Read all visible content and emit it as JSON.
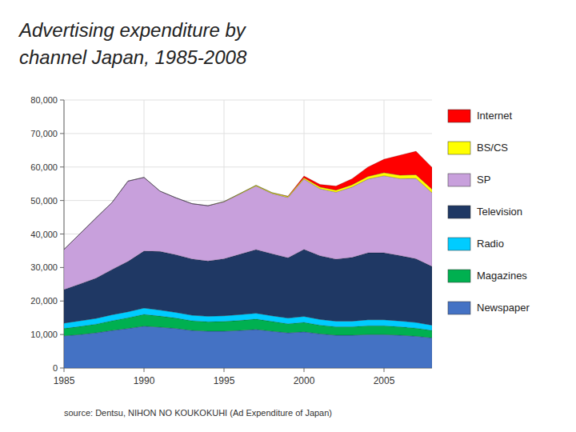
{
  "chart_data": {
    "type": "area",
    "stacked": true,
    "title": "Advertising expenditure by",
    "subtitle": "channel Japan, 1985-2008",
    "annotations": [
      "source: Dentsu, NIHON NO KOUKOKUHI (Ad Expenditure of Japan)"
    ],
    "x": [
      1985,
      1986,
      1987,
      1988,
      1989,
      1990,
      1991,
      1992,
      1993,
      1994,
      1995,
      1996,
      1997,
      1998,
      1999,
      2000,
      2001,
      2002,
      2003,
      2004,
      2005,
      2006,
      2007,
      2008
    ],
    "series": [
      {
        "name": "Newspaper",
        "color": "#4472C4",
        "values": [
          9600,
          10000,
          10500,
          11200,
          11800,
          12500,
          12200,
          11800,
          11200,
          11000,
          11000,
          11200,
          11500,
          11000,
          10500,
          10800,
          10200,
          9800,
          9800,
          10000,
          10000,
          9800,
          9500,
          9000
        ]
      },
      {
        "name": "Magazines",
        "color": "#00B050",
        "values": [
          2200,
          2400,
          2600,
          2900,
          3200,
          3500,
          3300,
          3100,
          2900,
          2800,
          2900,
          3000,
          3100,
          2900,
          2700,
          2800,
          2600,
          2500,
          2500,
          2600,
          2600,
          2500,
          2400,
          2200
        ]
      },
      {
        "name": "Radio",
        "color": "#00CCFF",
        "values": [
          1600,
          1700,
          1700,
          1800,
          1800,
          1900,
          1800,
          1700,
          1650,
          1650,
          1700,
          1750,
          1750,
          1700,
          1700,
          1800,
          1700,
          1700,
          1700,
          1800,
          1800,
          1750,
          1700,
          1600
        ]
      },
      {
        "name": "Television",
        "color": "#1F3864",
        "values": [
          10000,
          11000,
          12000,
          13500,
          15000,
          17000,
          17500,
          17200,
          16800,
          16500,
          17000,
          18000,
          19000,
          18500,
          18000,
          20000,
          19000,
          18500,
          19000,
          20000,
          20000,
          19500,
          19000,
          17500
        ]
      },
      {
        "name": "SP",
        "color": "#C8A0DC",
        "values": [
          12000,
          15000,
          18000,
          20000,
          24000,
          22000,
          18000,
          17000,
          16500,
          16500,
          17000,
          18000,
          19000,
          18000,
          18000,
          21000,
          20000,
          20000,
          21000,
          22000,
          23000,
          23000,
          24000,
          22000
        ]
      },
      {
        "name": "BS/CS",
        "color": "#FFFF00",
        "values": [
          0,
          0,
          0,
          0,
          0,
          0,
          0,
          0,
          0,
          0,
          100,
          150,
          200,
          250,
          300,
          400,
          500,
          600,
          700,
          800,
          900,
          1000,
          1100,
          1100
        ]
      },
      {
        "name": "Internet",
        "color": "#FF0000",
        "values": [
          0,
          0,
          0,
          0,
          0,
          0,
          0,
          0,
          0,
          0,
          0,
          0,
          0,
          0,
          100,
          500,
          800,
          1200,
          1800,
          2800,
          4000,
          6000,
          7000,
          6500
        ]
      }
    ],
    "xlim": [
      1985,
      2008
    ],
    "xticks": [
      1985,
      1990,
      1995,
      2000,
      2005
    ],
    "ylim": [
      0,
      80000
    ],
    "yticks": [
      0,
      {
        "value": 10000,
        "label": "10,000"
      },
      {
        "value": 20000,
        "label": "20,000"
      },
      {
        "value": 30000,
        "label": "30,000"
      },
      {
        "value": 40000,
        "label": "40,000"
      },
      {
        "value": 50000,
        "label": "50,000"
      },
      {
        "value": 60000,
        "label": "60,000"
      },
      {
        "value": 70000,
        "label": "70,000"
      },
      {
        "value": 80000,
        "label": "80,000"
      }
    ],
    "grid": true,
    "legend": "right"
  }
}
